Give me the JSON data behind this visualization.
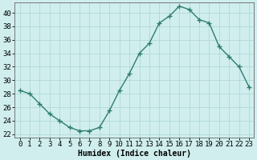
{
  "x": [
    0,
    1,
    2,
    3,
    4,
    5,
    6,
    7,
    8,
    9,
    10,
    11,
    12,
    13,
    14,
    15,
    16,
    17,
    18,
    19,
    20,
    21,
    22,
    23
  ],
  "y": [
    28.5,
    28,
    26.5,
    25,
    24,
    23,
    22.5,
    22.5,
    23,
    25.5,
    28.5,
    31,
    34,
    35.5,
    38.5,
    39.5,
    41,
    40.5,
    39,
    38.5,
    35,
    33.5,
    32,
    29
  ],
  "line_color": "#2e7d6e",
  "marker": "+",
  "marker_size": 4,
  "background_color": "#d0eeee",
  "grid_color": "#b0d8d8",
  "xlabel": "Humidex (Indice chaleur)",
  "xlabel_fontsize": 7,
  "tick_fontsize": 6.5,
  "ylim": [
    21.5,
    41.5
  ],
  "yticks": [
    22,
    24,
    26,
    28,
    30,
    32,
    34,
    36,
    38,
    40
  ],
  "xticks": [
    0,
    1,
    2,
    3,
    4,
    5,
    6,
    7,
    8,
    9,
    10,
    11,
    12,
    13,
    14,
    15,
    16,
    17,
    18,
    19,
    20,
    21,
    22,
    23
  ],
  "line_width": 1.0
}
